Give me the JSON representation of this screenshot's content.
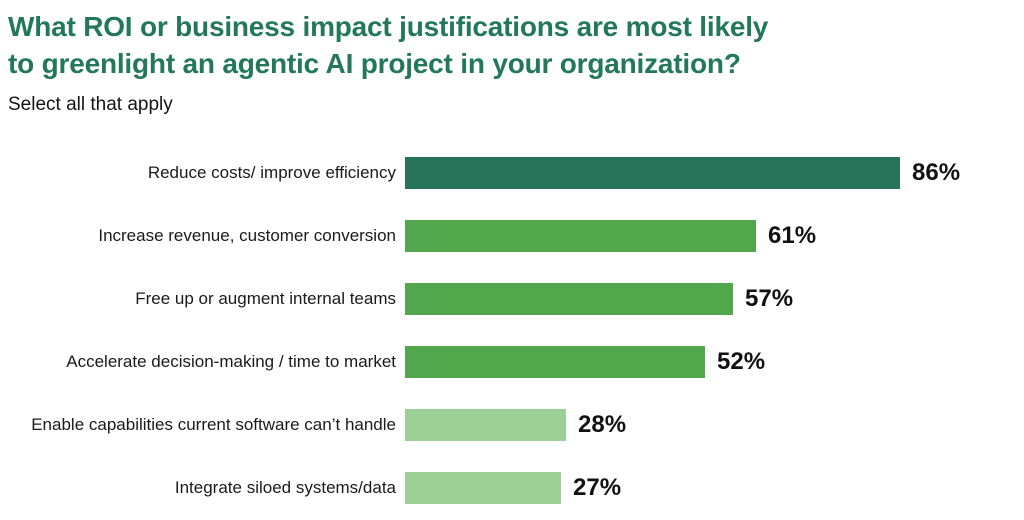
{
  "header": {
    "title_lines": [
      "What ROI or business impact justifications are most likely",
      "to greenlight an agentic AI project in your organization?"
    ],
    "subtitle": "Select all that apply"
  },
  "colors": {
    "title_green": "#23775A",
    "dark_green": "#26735A",
    "medium_green": "#52A74C",
    "light_green": "#9DD097",
    "text_dark": "#111111",
    "background": "#FFFFFF"
  },
  "chart_data": {
    "type": "bar",
    "orientation": "horizontal",
    "title": "What ROI or business impact justifications are most likely to greenlight an agentic AI project in your organization?",
    "subtitle": "Select all that apply",
    "categories": [
      "Reduce costs/ improve efficiency",
      "Increase revenue, customer conversion",
      "Free up or augment internal teams",
      "Accelerate decision-making / time to market",
      "Enable capabilities current software can’t handle",
      "Integrate siloed systems/data"
    ],
    "values": [
      86,
      61,
      57,
      52,
      28,
      27
    ],
    "value_labels": [
      "86%",
      "61%",
      "57%",
      "52%",
      "28%",
      "27%"
    ],
    "bar_colors": [
      "#26735A",
      "#52A74C",
      "#52A74C",
      "#52A74C",
      "#9DD097",
      "#9DD097"
    ],
    "xlim": [
      0,
      100
    ],
    "xlabel": "",
    "ylabel": "",
    "grid": false,
    "legend": false,
    "value_labels_position": "end-of-bar"
  }
}
